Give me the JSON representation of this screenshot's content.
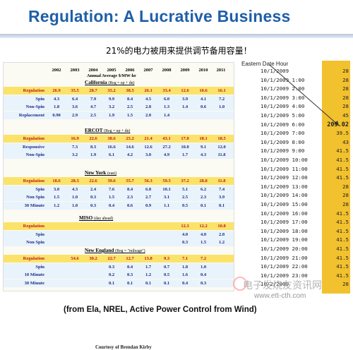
{
  "title": "Regulation: A Lucrative Business",
  "cn_note": "21%的电力被用来提供调节备用容量！",
  "table": {
    "years": [
      "2002",
      "2003",
      "2004",
      "2005",
      "2006",
      "2007",
      "2008",
      "2009",
      "2010",
      "2011"
    ],
    "subheader": "Annual Average $/MW-hr",
    "sections": [
      {
        "name": "California",
        "note": "(Reg = up + dn)",
        "rows": [
          {
            "label": "Regulation",
            "values": [
              "26.9",
              "35.5",
              "28.7",
              "35.2",
              "38.5",
              "26.1",
              "33.4",
              "12.6",
              "10.6",
              "16.1"
            ],
            "kind": "reg"
          },
          {
            "label": "Spin",
            "values": [
              "4.3",
              "6.4",
              "7.9",
              "9.9",
              "8.4",
              "4.5",
              "6.0",
              "3.9",
              "4.1",
              "7.2"
            ],
            "kind": "alt"
          },
          {
            "label": "Non-Spin",
            "values": [
              "1.8",
              "3.6",
              "4.7",
              "3.2",
              "2.5",
              "2.8",
              "1.3",
              "1.4",
              "0.6",
              "1.0"
            ],
            "kind": "alt"
          },
          {
            "label": "Replacement",
            "values": [
              "0.90",
              "2.9",
              "2.5",
              "1.9",
              "1.5",
              "2.0",
              "1.4",
              "",
              "",
              ""
            ],
            "kind": "alt"
          }
        ]
      },
      {
        "name": "ERCOT",
        "note": "(Reg = up + dn)",
        "rows": [
          {
            "label": "Regulation",
            "values": [
              "",
              "16.9",
              "22.6",
              "38.6",
              "25.2",
              "21.4",
              "43.1",
              "17.0",
              "18.1",
              "18.5"
            ],
            "kind": "reg"
          },
          {
            "label": "Responsive",
            "values": [
              "",
              "7.3",
              "8.3",
              "16.6",
              "14.6",
              "12.6",
              "27.2",
              "10.0",
              "9.1",
              "12.0"
            ],
            "kind": "alt"
          },
          {
            "label": "Non-Spin",
            "values": [
              "",
              "3.2",
              "1.9",
              "6.1",
              "4.2",
              "3.0",
              "4.9",
              "1.7",
              "4.3",
              "11.8"
            ],
            "kind": "alt"
          }
        ]
      },
      {
        "name": "New York",
        "note": "(east)",
        "rows": [
          {
            "label": "Regulation",
            "values": [
              "18.6",
              "28.3",
              "22.6",
              "39.6",
              "55.7",
              "56.3",
              "59.5",
              "37.2",
              "28.8",
              "11.8"
            ],
            "kind": "reg"
          },
          {
            "label": "Spin",
            "values": [
              "3.0",
              "4.3",
              "2.4",
              "7.6",
              "8.4",
              "6.8",
              "10.1",
              "5.1",
              "6.2",
              "7.4"
            ],
            "kind": "alt"
          },
          {
            "label": "Non Spin",
            "values": [
              "1.5",
              "1.0",
              "0.3",
              "1.5",
              "2.3",
              "2.7",
              "3.1",
              "2.5",
              "2.3",
              "3.9"
            ],
            "kind": "alt"
          },
          {
            "label": "30 Minute",
            "values": [
              "1.2",
              "1.0",
              "0.3",
              "0.4",
              "0.6",
              "0.9",
              "1.1",
              "0.5",
              "0.1",
              "0.1"
            ],
            "kind": "alt"
          }
        ]
      },
      {
        "name": "MISO",
        "note": "(day ahead)",
        "rows": [
          {
            "label": "Regulation",
            "values": [
              "",
              "",
              "",
              "",
              "",
              "",
              "",
              "12.3",
              "12.2",
              "10.8"
            ],
            "kind": "reg"
          },
          {
            "label": "Spin",
            "values": [
              "",
              "",
              "",
              "",
              "",
              "",
              "",
              "4.0",
              "4.0",
              "2.8"
            ],
            "kind": "alt"
          },
          {
            "label": "Non Spin",
            "values": [
              "",
              "",
              "",
              "",
              "",
              "",
              "",
              "0.3",
              "1.5",
              "1.2"
            ],
            "kind": "alt"
          }
        ]
      },
      {
        "name": "New England",
        "note": "(Reg = \"mileage\")",
        "rows": [
          {
            "label": "Regulation",
            "values": [
              "",
              "54.6",
              "30.2",
              "22.7",
              "12.7",
              "13.8",
              "9.3",
              "7.1",
              "7.2",
              ""
            ],
            "kind": "reg"
          },
          {
            "label": "Spin",
            "values": [
              "",
              "",
              "",
              "0.3",
              "0.4",
              "1.7",
              "0.7",
              "1.8",
              "1.0",
              ""
            ],
            "kind": "alt"
          },
          {
            "label": "10 Minute",
            "values": [
              "",
              "",
              "",
              "0.2",
              "0.3",
              "1.2",
              "0.5",
              "1.6",
              "0.4",
              ""
            ],
            "kind": "alt"
          },
          {
            "label": "30 Minute",
            "values": [
              "",
              "",
              "",
              "0.1",
              "0.1",
              "0.1",
              "0.1",
              "0.4",
              "0.3",
              ""
            ],
            "kind": "alt"
          }
        ]
      }
    ],
    "courtesy": "Courtesy of Brendan Kirby"
  },
  "side_list": {
    "header": "Eastern Date Hour",
    "rows": [
      {
        "date": "10/1/2009",
        "time": "",
        "value": "28"
      },
      {
        "date": "10/1/2009",
        "time": "1:00",
        "value": "28"
      },
      {
        "date": "10/1/2009",
        "time": "2:00",
        "value": "28"
      },
      {
        "date": "10/1/2009",
        "time": "3:00",
        "value": "28"
      },
      {
        "date": "10/1/2009",
        "time": "4:00",
        "value": "28"
      },
      {
        "date": "10/1/2009",
        "time": "5:00",
        "value": "45"
      },
      {
        "date": "10/1/2009",
        "time": "6:00",
        "value": "209.02"
      },
      {
        "date": "10/1/2009",
        "time": "7:00",
        "value": "39.5"
      },
      {
        "date": "10/1/2009",
        "time": "8:00",
        "value": "43"
      },
      {
        "date": "10/1/2009",
        "time": "9:00",
        "value": "41.5"
      },
      {
        "date": "10/1/2009",
        "time": "10:00",
        "value": "41.5"
      },
      {
        "date": "10/1/2009",
        "time": "11:00",
        "value": "41.5"
      },
      {
        "date": "10/1/2009",
        "time": "12:00",
        "value": "41.5"
      },
      {
        "date": "10/1/2009",
        "time": "13:00",
        "value": "28"
      },
      {
        "date": "10/1/2009",
        "time": "14:00",
        "value": "28"
      },
      {
        "date": "10/1/2009",
        "time": "15:00",
        "value": "28"
      },
      {
        "date": "10/1/2009",
        "time": "16:00",
        "value": "41.5"
      },
      {
        "date": "10/1/2009",
        "time": "17:00",
        "value": "41.5"
      },
      {
        "date": "10/1/2009",
        "time": "18:00",
        "value": "41.5"
      },
      {
        "date": "10/1/2009",
        "time": "19:00",
        "value": "41.5"
      },
      {
        "date": "10/1/2009",
        "time": "20:00",
        "value": "41.5"
      },
      {
        "date": "10/1/2009",
        "time": "21:00",
        "value": "41.5"
      },
      {
        "date": "10/1/2009",
        "time": "22:00",
        "value": "41.5"
      },
      {
        "date": "10/1/2009",
        "time": "23:00",
        "value": "41.5"
      },
      {
        "date": "10/2/2009",
        "time": "",
        "value": "28"
      }
    ]
  },
  "footer": "(from Ela, NREL, Active Power Control from Wind)",
  "watermark": {
    "cn": "电子发烧友资讯网",
    "url": "www.ett-cth.com"
  },
  "colors": {
    "title": "#1f5fa8",
    "regulation_row": "#fbe36a",
    "regulation_text": "#c0141c",
    "value_column": "#f2c12e",
    "arrow": "#333333"
  },
  "icons": [
    "arrow-icon",
    "watermark-logo-icon"
  ]
}
